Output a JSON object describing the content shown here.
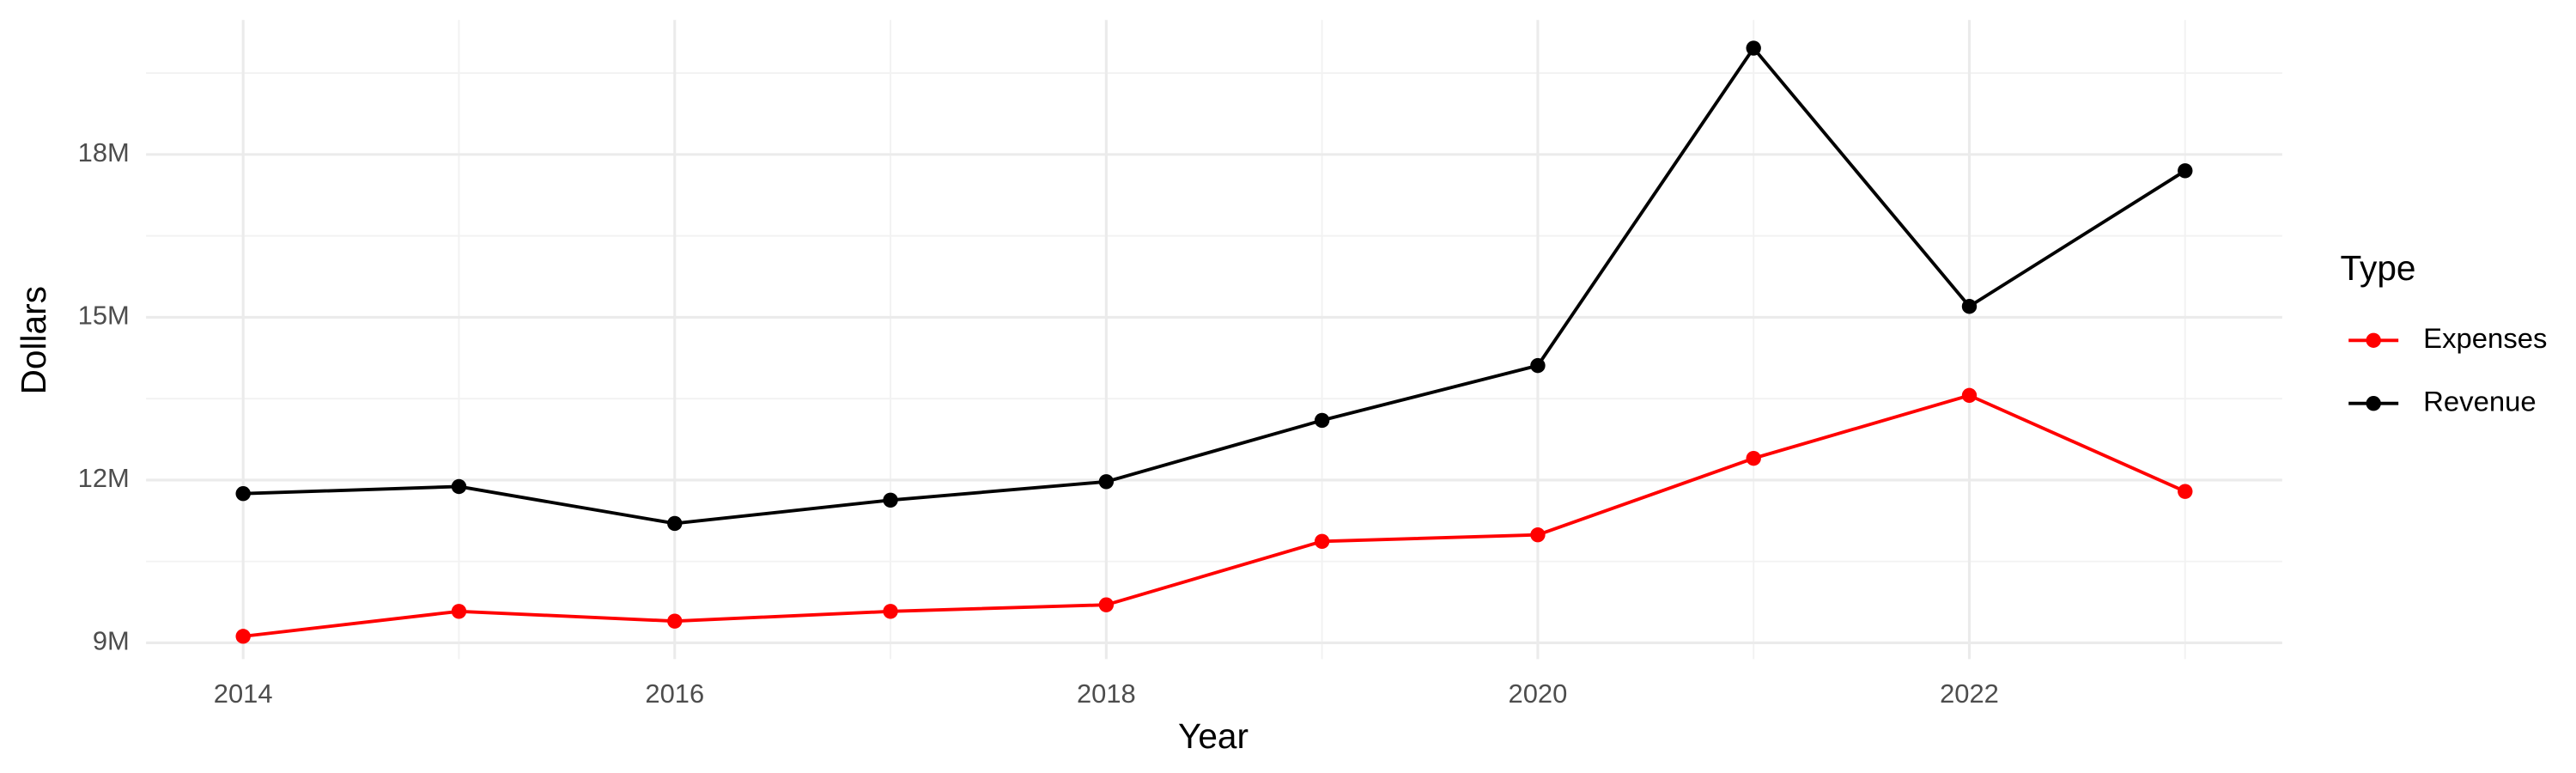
{
  "chart_data": {
    "type": "line",
    "x_label": "Year",
    "y_label": "Dollars",
    "legend_title": "Type",
    "legend_position": "right",
    "grid": true,
    "x": [
      2014,
      2015,
      2016,
      2017,
      2018,
      2019,
      2020,
      2021,
      2022,
      2023
    ],
    "series": [
      {
        "name": "Expenses",
        "color": "#ff0000",
        "values": [
          9120000,
          9580000,
          9400000,
          9580000,
          9700000,
          10870000,
          10990000,
          12400000,
          13560000,
          11790000
        ]
      },
      {
        "name": "Revenue",
        "color": "#000000",
        "values": [
          11750000,
          11880000,
          11200000,
          11630000,
          11970000,
          13100000,
          14110000,
          19960000,
          15200000,
          17700000
        ]
      }
    ],
    "xlim": [
      2013.55,
      2023.45
    ],
    "xticks": [
      2014,
      2016,
      2018,
      2020,
      2022
    ],
    "ylim": [
      8700000,
      20480000
    ],
    "yticks": [
      {
        "value": 9000000,
        "label": "9M"
      },
      {
        "value": 12000000,
        "label": "12M"
      },
      {
        "value": 15000000,
        "label": "15M"
      },
      {
        "value": 18000000,
        "label": "18M"
      }
    ]
  }
}
